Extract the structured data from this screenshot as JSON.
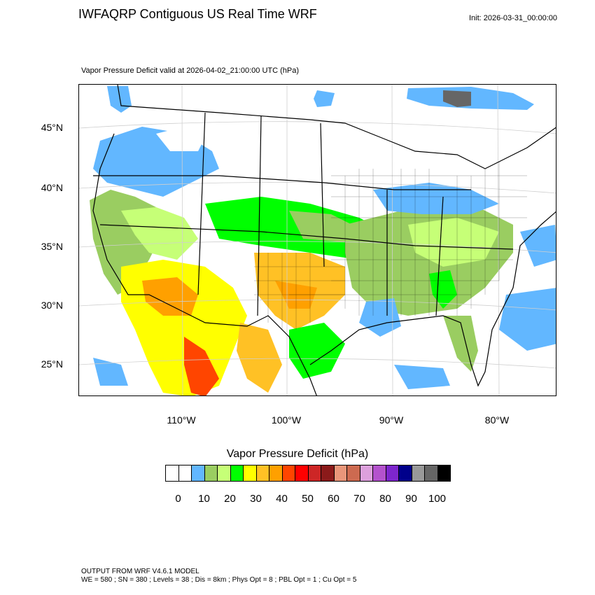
{
  "title": "IWFAQRP Contiguous US Real Time WRF",
  "init": "Init: 2026-03-31_00:00:00",
  "subtitle": "Vapor Pressure Deficit valid at 2026-04-02_21:00:00 UTC   (hPa)",
  "map": {
    "lat_labels": [
      "45°N",
      "40°N",
      "35°N",
      "30°N",
      "25°N"
    ],
    "lon_labels": [
      "110°W",
      "100°W",
      "90°W",
      "80°W"
    ]
  },
  "colorbar": {
    "title": "Vapor Pressure Deficit  (hPa)",
    "colors": [
      "#ffffff",
      "#ffffff",
      "#62b7ff",
      "#9acd61",
      "#c6ff77",
      "#00ff00",
      "#ffff00",
      "#ffc125",
      "#ffa000",
      "#ff4500",
      "#ff0000",
      "#cd2626",
      "#8b1a1a",
      "#e9967a",
      "#cd6a50",
      "#dda0dd",
      "#b452cd",
      "#7d26cd",
      "#00008b",
      "#999999",
      "#666666",
      "#000000"
    ],
    "ticks": [
      "0",
      "10",
      "20",
      "30",
      "40",
      "50",
      "60",
      "70",
      "80",
      "90",
      "100"
    ]
  },
  "footer": {
    "line1": "OUTPUT FROM WRF V4.6.1 MODEL",
    "line2": "WE = 580 ; SN = 380 ; Levels = 38 ; Dis = 8km ; Phys Opt = 8 ; PBL Opt = 1 ; Cu Opt = 5"
  }
}
